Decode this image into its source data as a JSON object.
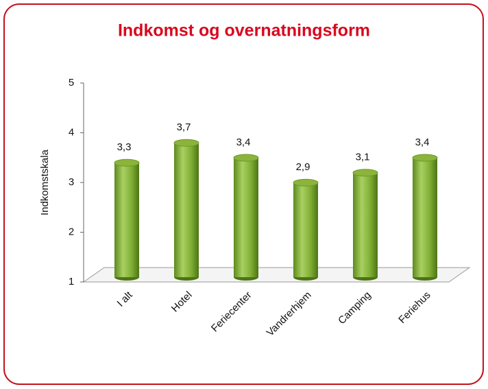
{
  "chart_data": {
    "type": "bar",
    "title": "Indkomst og overnatningsform",
    "y_label": "Indkomstskala",
    "categories": [
      "I alt",
      "Hotel",
      "Feriecenter",
      "Vandrerhjem",
      "Camping",
      "Feriehus"
    ],
    "values": [
      3.3,
      3.7,
      3.4,
      2.9,
      3.1,
      3.4
    ],
    "value_labels": [
      "3,3",
      "3,7",
      "3,4",
      "2,9",
      "3,1",
      "3,4"
    ],
    "color": "#8cb43c",
    "ylim": [
      1,
      5
    ],
    "yticks": [
      1,
      2,
      3,
      4,
      5
    ]
  }
}
